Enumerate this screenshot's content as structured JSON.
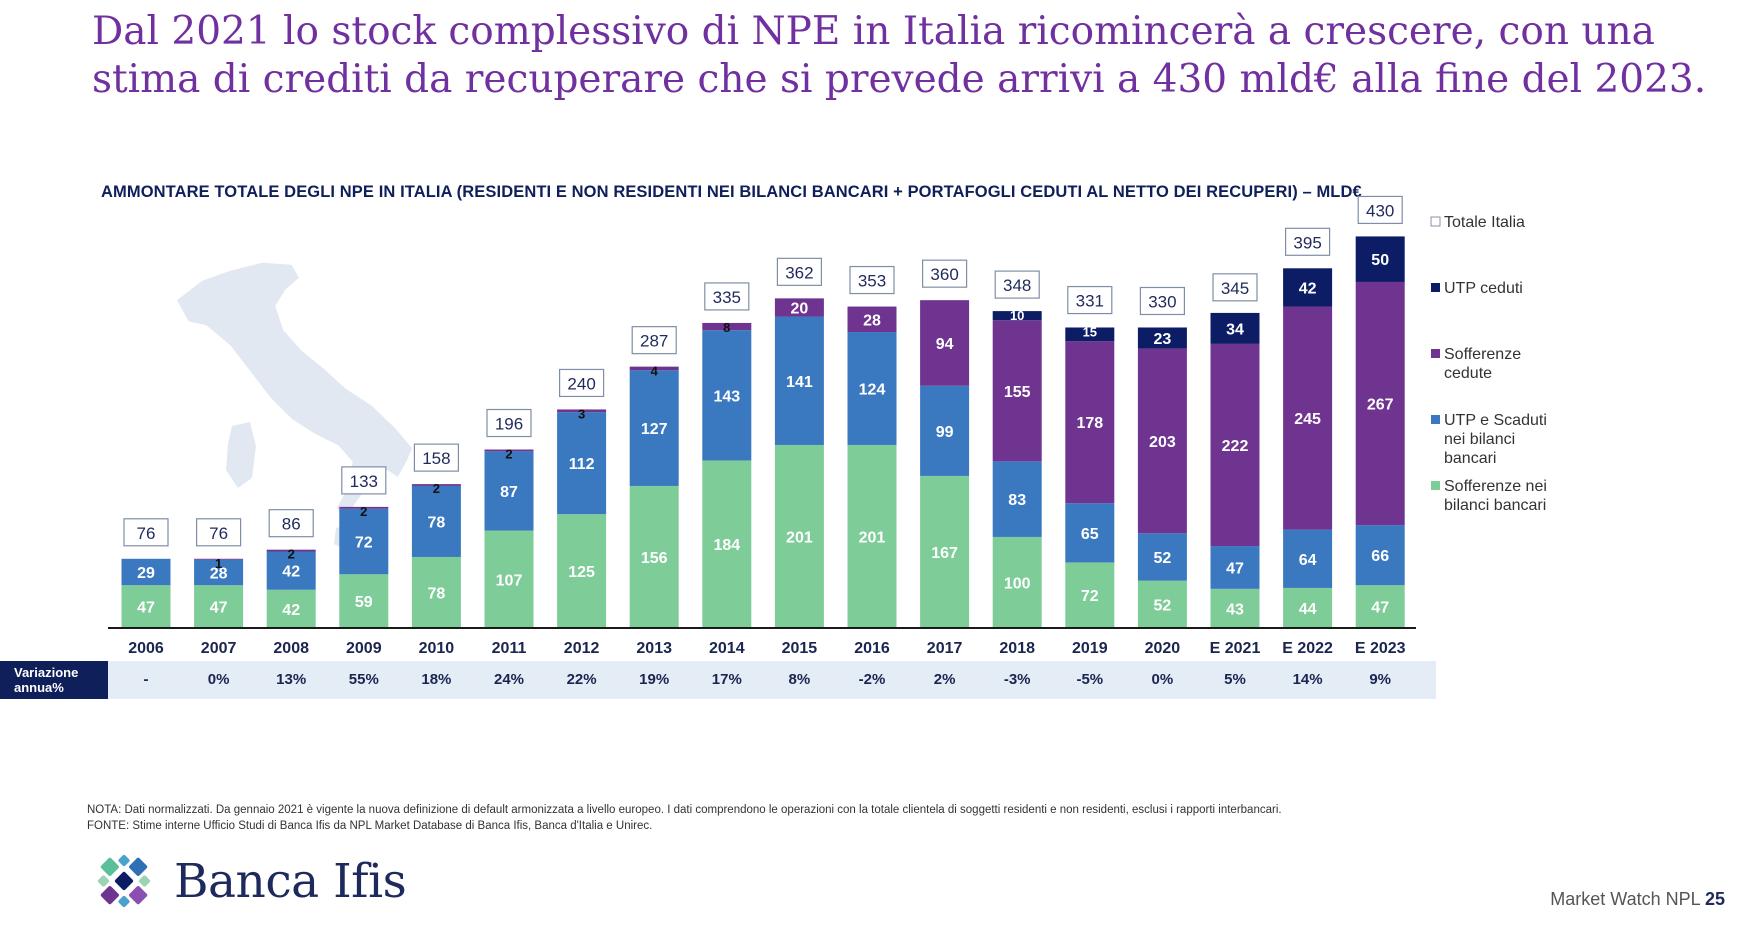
{
  "headline": "Dal 2021 lo stock complessivo di NPE in Italia ricomincerà a crescere, con una stima di crediti da recuperare che si prevede arrivi a 430 mld€ alla fine del 2023.",
  "colors": {
    "title": "#7030a0",
    "sofferenze_bilanci": "#7ecc97",
    "utp_scaduti": "#3a78c0",
    "sofferenze_cedute": "#6f3490",
    "utp_ceduti": "#0c1d66",
    "variazione_band": "#e4ecf6",
    "variazione_label_bg": "#0f1f5a"
  },
  "chart_data": {
    "type": "bar",
    "stacked": true,
    "title": "AMMONTARE TOTALE DEGLI NPE IN ITALIA (RESIDENTI E NON RESIDENTI NEI BILANCI BANCARI + PORTAFOGLI CEDUTI AL NETTO DEI RECUPERI) – MLD€",
    "categories": [
      "2006",
      "2007",
      "2008",
      "2009",
      "2010",
      "2011",
      "2012",
      "2013",
      "2014",
      "2015",
      "2016",
      "2017",
      "2018",
      "2019",
      "2020",
      "E 2021",
      "E 2022",
      "E 2023"
    ],
    "series": [
      {
        "name": "Sofferenze nei bilanci bancari",
        "color": "#7ecc97",
        "label_color": "#ffffff",
        "values": [
          47,
          47,
          42,
          59,
          78,
          107,
          125,
          156,
          184,
          201,
          201,
          167,
          100,
          72,
          52,
          43,
          44,
          47
        ]
      },
      {
        "name": "UTP e Scaduti nei bilanci bancari",
        "color": "#3a78c0",
        "label_color": "#ffffff",
        "values": [
          29,
          28,
          42,
          72,
          78,
          87,
          112,
          127,
          143,
          141,
          124,
          99,
          83,
          65,
          52,
          47,
          64,
          66
        ]
      },
      {
        "name": "Sofferenze cedute",
        "color": "#6f3490",
        "label_color": "#ffffff",
        "values": [
          0,
          1,
          2,
          2,
          2,
          2,
          3,
          4,
          8,
          20,
          28,
          94,
          155,
          178,
          203,
          222,
          245,
          267
        ]
      },
      {
        "name": "UTP ceduti",
        "color": "#0c1d66",
        "label_color": "#ffffff",
        "values": [
          0,
          0,
          0,
          0,
          0,
          0,
          0,
          0,
          0,
          0,
          0,
          0,
          10,
          15,
          23,
          34,
          42,
          50
        ]
      }
    ],
    "totals": [
      76,
      76,
      86,
      133,
      158,
      196,
      240,
      287,
      335,
      362,
      353,
      360,
      348,
      331,
      330,
      345,
      395,
      430
    ],
    "totals_legend": "Totale Italia",
    "legend": [
      {
        "label": "Totale Italia",
        "marker": "outline"
      },
      {
        "label": "UTP ceduti",
        "marker": "#0c1d66"
      },
      {
        "label": "Sofferenze\ncedute",
        "marker": "#6f3490"
      },
      {
        "label": "UTP e Scaduti\nnei bilanci\nbancari",
        "marker": "#3a78c0"
      },
      {
        "label": "Sofferenze nei\nbilanci bancari",
        "marker": "#7ecc97"
      }
    ],
    "ylim": [
      0,
      470
    ],
    "variazione_label": "Variazione annua%",
    "variazione": [
      "-",
      "0%",
      "13%",
      "55%",
      "18%",
      "24%",
      "22%",
      "19%",
      "17%",
      "8%",
      "-2%",
      "2%",
      "-3%",
      "-5%",
      "0%",
      "5%",
      "14%",
      "9%"
    ]
  },
  "footnotes": {
    "nota": "NOTA: Dati normalizzati. Da gennaio 2021 è vigente la nuova definizione di default armonizzata a livello europeo. I dati comprendono le operazioni con la totale clientela di  soggetti residenti e non residenti, esclusi i rapporti interbancari.",
    "fonte": "FONTE: Stime interne  Ufficio Studi di Banca Ifis da NPL Market Database di Banca Ifis, Banca d'Italia e Unirec."
  },
  "brand": {
    "name": "Banca Ifis"
  },
  "footer": {
    "publication": "Market Watch NPL",
    "page": "25"
  }
}
